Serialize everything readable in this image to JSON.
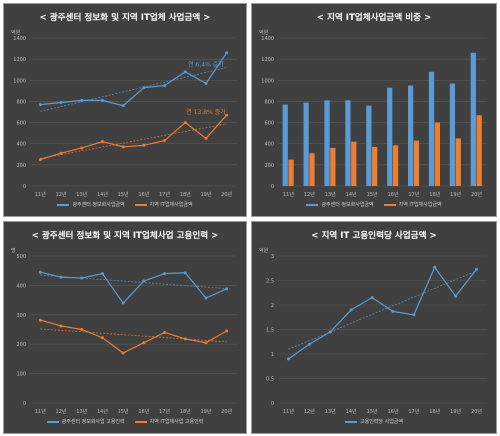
{
  "colors": {
    "blue": "#5b9bd5",
    "orange": "#ed7d31",
    "grid": "#5a5a5a",
    "axis_text": "#bfbfbf"
  },
  "chart_data": [
    {
      "type": "line",
      "title": "< 광주센터 정보화 및 지역 IT업체 사업금액 >",
      "ylabel": "억원",
      "ylim": [
        0,
        1400
      ],
      "yticks": [
        0,
        200,
        400,
        600,
        800,
        1000,
        1200,
        1400
      ],
      "categories": [
        "11년",
        "12년",
        "13년",
        "14년",
        "15년",
        "16년",
        "17년",
        "18년",
        "19년",
        "20년"
      ],
      "series": [
        {
          "name": "광주센터 정보화사업금액",
          "color": "#5b9bd5",
          "values": [
            770,
            790,
            810,
            810,
            760,
            930,
            950,
            1080,
            970,
            1260
          ]
        },
        {
          "name": "지역 IT업체사업금액",
          "color": "#ed7d31",
          "values": [
            250,
            310,
            360,
            420,
            370,
            385,
            430,
            600,
            450,
            670
          ]
        }
      ],
      "trendlines": true,
      "annotations": [
        {
          "text": "연 6.4% 증가",
          "color": "#5b9bd5",
          "at_category": "19년",
          "at_value": 1130
        },
        {
          "text": "연 13.8% 증가",
          "color": "#ed7d31",
          "at_category": "19년",
          "at_value": 680
        }
      ]
    },
    {
      "type": "bar",
      "title": "< 지역 IT업체사업금액 비중 >",
      "ylabel": "억원",
      "ylim": [
        0,
        1400
      ],
      "yticks": [
        0,
        200,
        400,
        600,
        800,
        1000,
        1200,
        1400
      ],
      "categories": [
        "11년",
        "12년",
        "13년",
        "14년",
        "15년",
        "16년",
        "17년",
        "18년",
        "19년",
        "20년"
      ],
      "series": [
        {
          "name": "광주센터 정보화사업금액",
          "color": "#5b9bd5",
          "values": [
            770,
            790,
            810,
            810,
            760,
            930,
            950,
            1080,
            970,
            1260
          ]
        },
        {
          "name": "지역 IT업체사업금액",
          "color": "#ed7d31",
          "values": [
            250,
            310,
            360,
            420,
            370,
            385,
            430,
            600,
            450,
            670
          ]
        }
      ]
    },
    {
      "type": "line",
      "title": "< 광주센터 정보화 및 지역 IT업체사업 고용인력 >",
      "ylabel": "명",
      "ylim": [
        0,
        500
      ],
      "yticks": [
        0,
        100,
        200,
        300,
        400,
        500
      ],
      "categories": [
        "11년",
        "12년",
        "13년",
        "14년",
        "15년",
        "16년",
        "17년",
        "18년",
        "19년",
        "20년"
      ],
      "series": [
        {
          "name": "광주센터 정보화사업 고용인력",
          "color": "#5b9bd5",
          "values": [
            445,
            428,
            425,
            440,
            340,
            415,
            440,
            443,
            357,
            388
          ]
        },
        {
          "name": "지역 IT업체사업 고용인력",
          "color": "#ed7d31",
          "values": [
            282,
            262,
            250,
            222,
            170,
            205,
            240,
            218,
            205,
            245
          ]
        }
      ],
      "trendlines": true
    },
    {
      "type": "line",
      "title": "< 지역 IT 고용인력당 사업금액 >",
      "ylabel": "억원",
      "ylim": [
        0,
        3
      ],
      "yticks": [
        0,
        0.5,
        1,
        1.5,
        2,
        2.5,
        3
      ],
      "categories": [
        "11년",
        "12년",
        "13년",
        "14년",
        "15년",
        "16년",
        "17년",
        "18년",
        "19년",
        "20년"
      ],
      "series": [
        {
          "name": "고용인력당 사업금액",
          "color": "#5b9bd5",
          "values": [
            0.9,
            1.2,
            1.45,
            1.9,
            2.15,
            1.87,
            1.8,
            2.77,
            2.18,
            2.73
          ]
        }
      ],
      "trendlines": true
    }
  ]
}
